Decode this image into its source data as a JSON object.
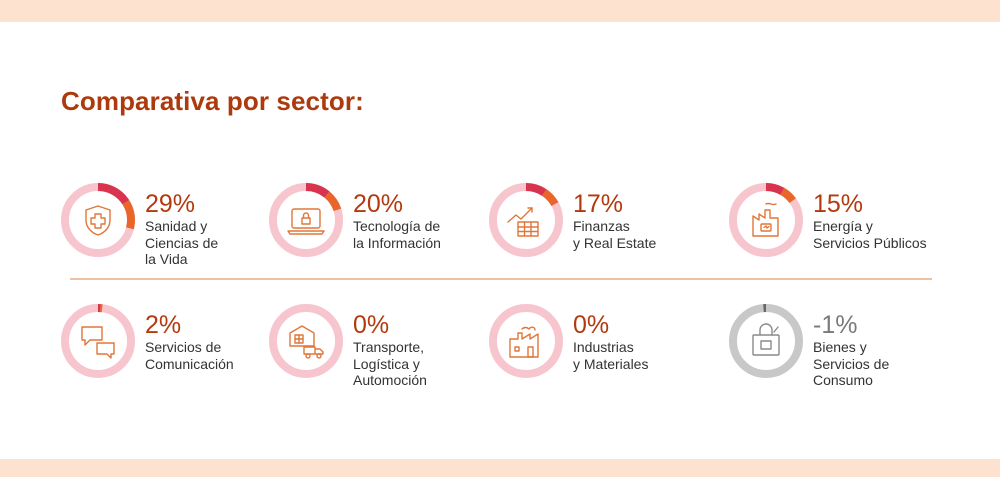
{
  "title": "Comparativa por sector:",
  "colors": {
    "accent": "#ad3a0c",
    "ring_track": "#f7c5ce",
    "ring_fill_start": "#d8344f",
    "ring_fill_end": "#e8662a",
    "icon": "#e0763a",
    "neg_ring": "#c8c8c8",
    "band": "#fde3cf"
  },
  "sectors": [
    {
      "pct": "29%",
      "value": 29,
      "lines": [
        "Sanidad y",
        "Ciencias de",
        "la Vida"
      ],
      "icon": "health-shield-icon"
    },
    {
      "pct": "20%",
      "value": 20,
      "lines": [
        "Tecnología de",
        "la Información"
      ],
      "icon": "laptop-lock-icon"
    },
    {
      "pct": "17%",
      "value": 17,
      "lines": [
        "Finanzas",
        "y Real Estate"
      ],
      "icon": "growth-chart-icon"
    },
    {
      "pct": "15%",
      "value": 15,
      "lines": [
        "Energía y",
        "Servicios Públicos"
      ],
      "icon": "energy-factory-icon"
    },
    {
      "pct": "2%",
      "value": 2,
      "lines": [
        "Servicios de",
        "Comunicación"
      ],
      "icon": "chat-bubbles-icon"
    },
    {
      "pct": "0%",
      "value": 0,
      "lines": [
        "Transporte,",
        "Logística y",
        "Automoción"
      ],
      "icon": "warehouse-truck-icon"
    },
    {
      "pct": "0%",
      "value": 0,
      "lines": [
        "Industrias",
        "y Materiales"
      ],
      "icon": "industry-icon"
    },
    {
      "pct": "-1%",
      "value": -1,
      "lines": [
        "Bienes y",
        "Servicios de",
        "Consumo"
      ],
      "icon": "shopping-bag-icon"
    }
  ]
}
